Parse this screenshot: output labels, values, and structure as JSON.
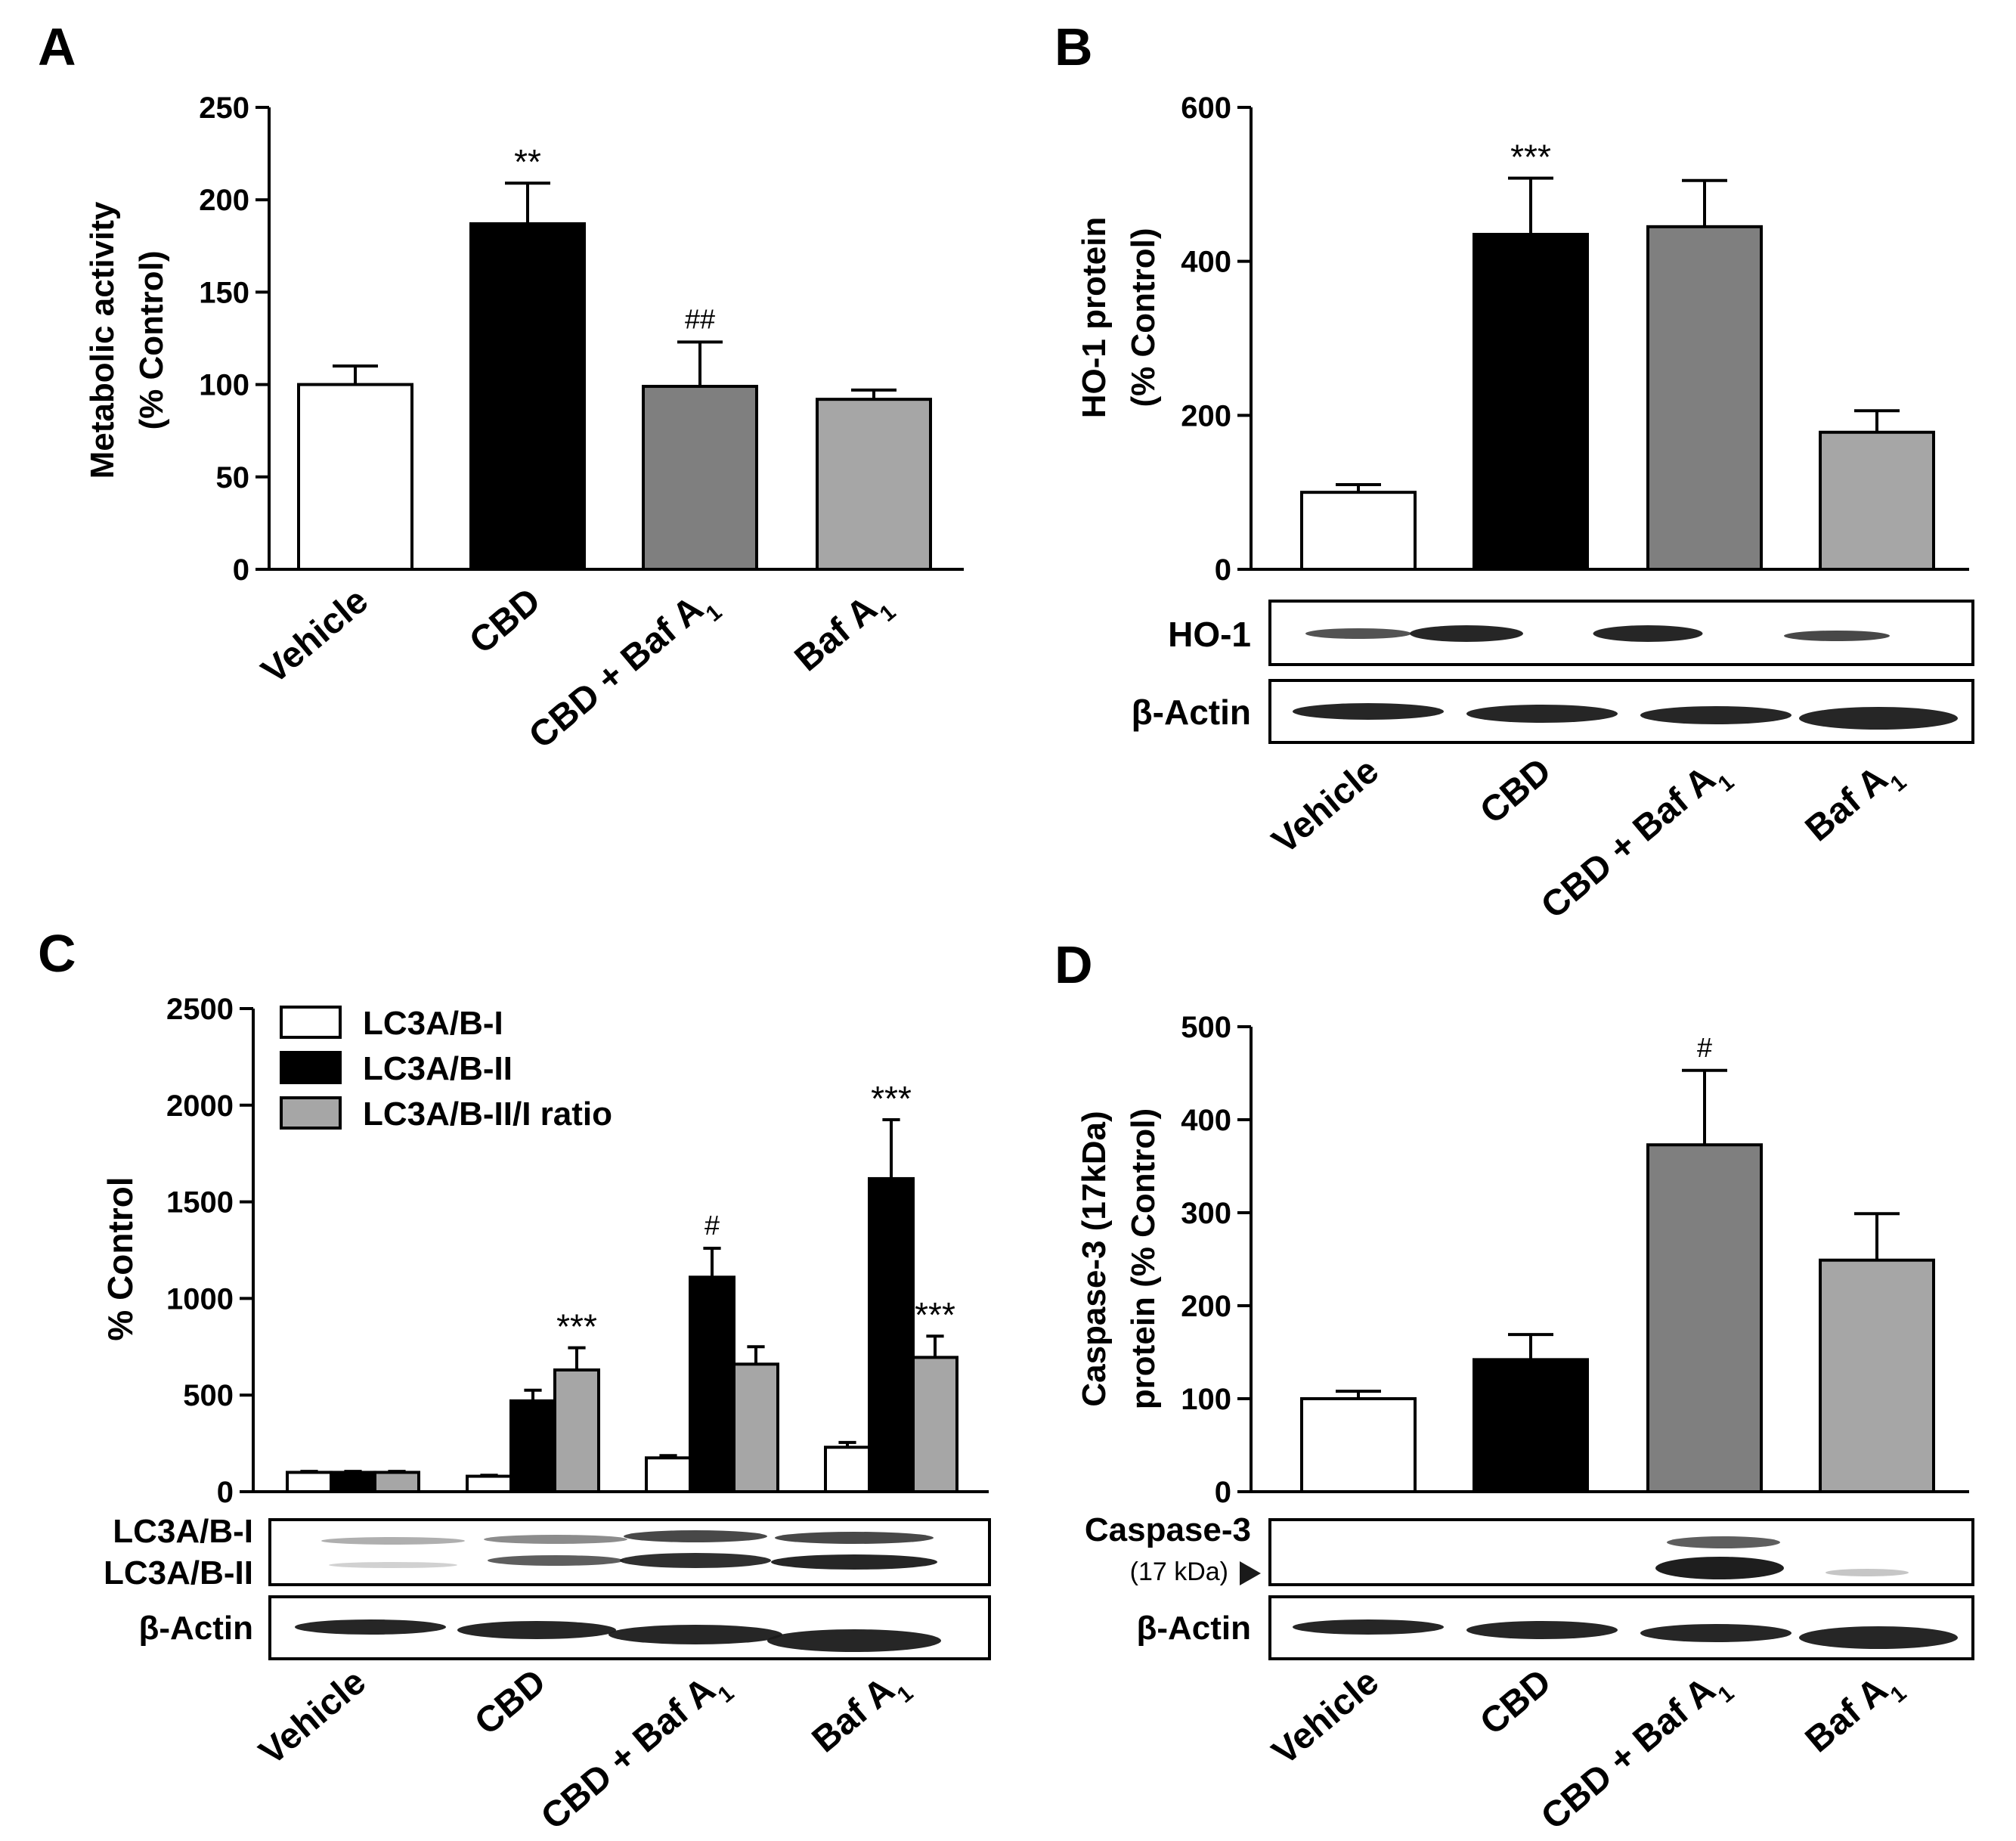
{
  "figure": {
    "background": "#ffffff"
  },
  "colors": {
    "Vehicle": "#ffffff",
    "CBD": "#000000",
    "CBD + Baf A1": "#7f7f7f",
    "Baf A1": "#a6a6a6",
    "band": "#1a1a1a",
    "axis": "#000000"
  },
  "chart_data": [
    {
      "panel": "A",
      "type": "bar",
      "ylabel": [
        "Metabolic activity",
        "(% Control)"
      ],
      "ylim": [
        0,
        250
      ],
      "yticks": [
        0,
        50,
        100,
        150,
        200,
        250
      ],
      "categories": [
        "Vehicle",
        "CBD",
        "CBD + Baf A1",
        "Baf A1"
      ],
      "values": [
        100,
        187,
        99,
        92
      ],
      "errors": [
        10,
        22,
        24,
        5
      ],
      "annotations": [
        "",
        "**",
        "##",
        ""
      ]
    },
    {
      "panel": "B",
      "type": "bar",
      "ylabel": [
        "HO-1 protein",
        "(% Control)"
      ],
      "ylim": [
        0,
        600
      ],
      "yticks": [
        0,
        200,
        400,
        600
      ],
      "categories": [
        "Vehicle",
        "CBD",
        "CBD + Baf A1",
        "Baf A1"
      ],
      "values": [
        100,
        435,
        445,
        178
      ],
      "errors": [
        10,
        73,
        60,
        28
      ],
      "annotations": [
        "",
        "***",
        "",
        ""
      ],
      "blots": [
        "HO-1",
        "β-Actin"
      ]
    },
    {
      "panel": "C",
      "type": "bar",
      "ylabel": [
        "% Control"
      ],
      "ylim": [
        0,
        2500
      ],
      "yticks": [
        0,
        500,
        1000,
        1500,
        2000,
        2500
      ],
      "categories": [
        "Vehicle",
        "CBD",
        "CBD + Baf A1",
        "Baf A1"
      ],
      "legend": [
        "LC3A/B-I",
        "LC3A/B-II",
        "LC3A/B-II/I ratio"
      ],
      "series": [
        {
          "name": "LC3A/B-I",
          "values": [
            100,
            80,
            175,
            230
          ],
          "errors": [
            5,
            5,
            12,
            25
          ],
          "annotations": [
            "",
            "",
            "",
            ""
          ]
        },
        {
          "name": "LC3A/B-II",
          "values": [
            100,
            470,
            1110,
            1620
          ],
          "errors": [
            5,
            55,
            150,
            305
          ],
          "annotations": [
            "",
            "",
            "#",
            "***"
          ]
        },
        {
          "name": "LC3A/B-II/I ratio",
          "values": [
            100,
            630,
            660,
            695
          ],
          "errors": [
            5,
            115,
            90,
            110
          ],
          "annotations": [
            "",
            "***",
            "",
            "***"
          ]
        }
      ],
      "blots": [
        "LC3A/B-I",
        "LC3A/B-II",
        "β-Actin"
      ]
    },
    {
      "panel": "D",
      "type": "bar",
      "ylabel": [
        "Caspase-3 (17kDa)",
        "protein (% Control)"
      ],
      "ylim": [
        0,
        500
      ],
      "yticks": [
        0,
        100,
        200,
        300,
        400,
        500
      ],
      "categories": [
        "Vehicle",
        "CBD",
        "CBD + Baf A1",
        "Baf A1"
      ],
      "values": [
        100,
        142,
        373,
        249
      ],
      "errors": [
        8,
        27,
        80,
        50
      ],
      "annotations": [
        "",
        "",
        "#",
        ""
      ],
      "blots": [
        "Caspase-3",
        "(17 kDa)",
        "β-Actin"
      ]
    }
  ]
}
